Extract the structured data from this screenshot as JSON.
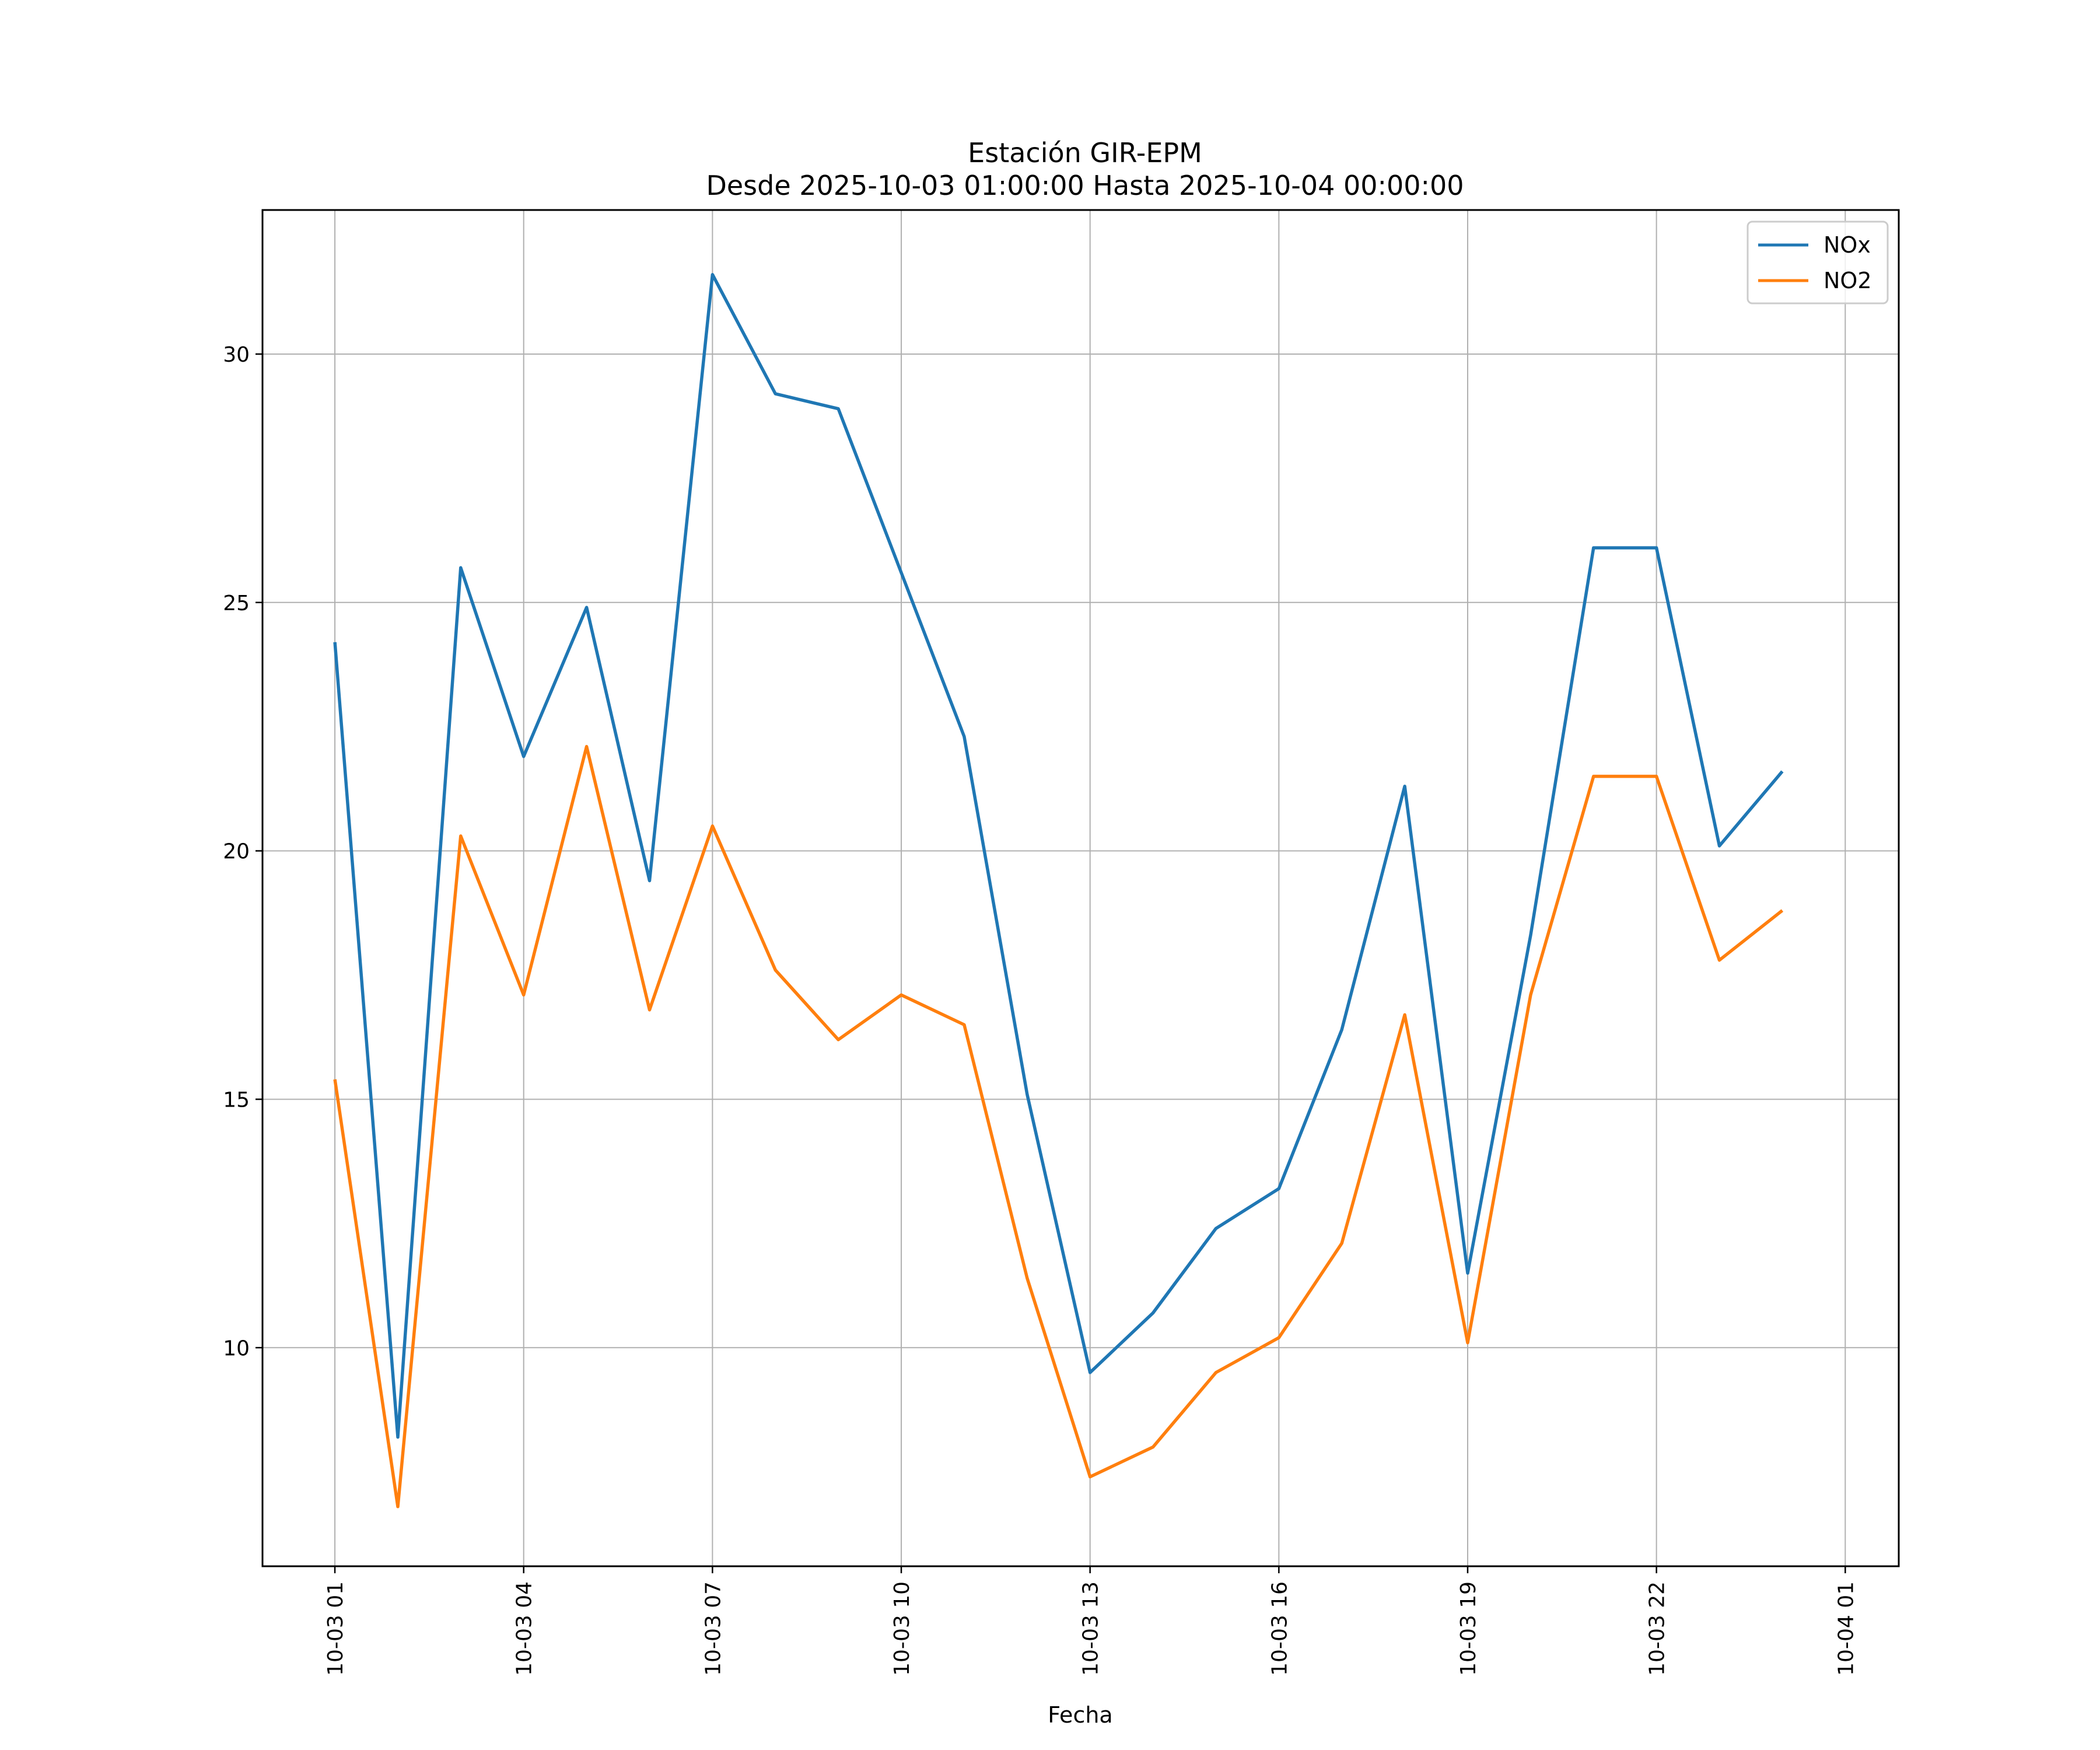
{
  "chart_data": {
    "type": "line",
    "title": "Estación GIR-EPM",
    "subtitle": "Desde 2025-10-03 01:00:00 Hasta 2025-10-04 00:00:00",
    "xlabel": "Fecha",
    "ylabel": "",
    "x": [
      "2025-10-03 01:00",
      "2025-10-03 02:00",
      "2025-10-03 03:00",
      "2025-10-03 04:00",
      "2025-10-03 05:00",
      "2025-10-03 06:00",
      "2025-10-03 07:00",
      "2025-10-03 08:00",
      "2025-10-03 09:00",
      "2025-10-03 10:00",
      "2025-10-03 11:00",
      "2025-10-03 12:00",
      "2025-10-03 13:00",
      "2025-10-03 14:00",
      "2025-10-03 15:00",
      "2025-10-03 16:00",
      "2025-10-03 17:00",
      "2025-10-03 18:00",
      "2025-10-03 19:00",
      "2025-10-03 20:00",
      "2025-10-03 21:00",
      "2025-10-03 22:00",
      "2025-10-03 23:00",
      "2025-10-04 00:00"
    ],
    "series": [
      {
        "name": "NOx",
        "color": "#1f77b4",
        "values": [
          24.2,
          8.2,
          25.7,
          21.9,
          24.9,
          19.4,
          31.6,
          29.2,
          28.9,
          25.6,
          22.3,
          15.1,
          9.5,
          10.7,
          12.4,
          13.2,
          16.4,
          21.3,
          11.5,
          18.3,
          26.1,
          26.1,
          20.1,
          21.6
        ]
      },
      {
        "name": "NO2",
        "color": "#ff7f0e",
        "values": [
          15.4,
          6.8,
          20.3,
          17.1,
          22.1,
          16.8,
          20.5,
          17.6,
          16.2,
          17.1,
          16.5,
          11.4,
          7.4,
          8.0,
          9.5,
          10.2,
          12.1,
          16.7,
          10.1,
          17.1,
          21.5,
          21.5,
          17.8,
          18.8
        ]
      }
    ],
    "xticks": [
      "10-03 01",
      "10-03 04",
      "10-03 07",
      "10-03 10",
      "10-03 13",
      "10-03 16",
      "10-03 19",
      "10-03 22",
      "10-04 01"
    ],
    "yticks": [
      10,
      15,
      20,
      25,
      30
    ],
    "ylim": [
      5.6,
      32.9
    ],
    "xlim_hours_from_first": [
      -1.15,
      24.85
    ],
    "grid": true,
    "legend_position": "top-right"
  }
}
